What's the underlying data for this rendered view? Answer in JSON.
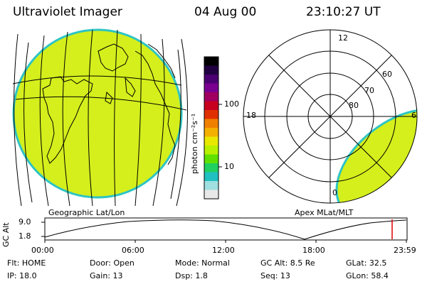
{
  "header": {
    "title": "Ultraviolet Imager",
    "date": "04 Aug 00",
    "time": "23:10:27 UT"
  },
  "colorbar": {
    "unit_label": "photon cm⁻²s⁻¹",
    "ticks": [
      "100",
      "10"
    ],
    "colors": [
      "#000000",
      "#200040",
      "#4a0070",
      "#7a0090",
      "#a00060",
      "#c80020",
      "#e03000",
      "#f08000",
      "#f4b000",
      "#e8e800",
      "#b8f000",
      "#60e000",
      "#20d060",
      "#20c0c0",
      "#a0e0e0",
      "#e8e8e8"
    ]
  },
  "left_panel": {
    "caption": "Geographic Lat/Lon",
    "fill_color": "#d4ef1c",
    "limb_color": "#2ec4c4"
  },
  "right_panel": {
    "caption": "Apex MLat/MLT",
    "mlt_labels": {
      "top": "12",
      "left": "18",
      "right": "6",
      "bottom": "0"
    },
    "lat_labels": [
      "60",
      "70",
      "80"
    ]
  },
  "timeline": {
    "ylabel": "GC Alt",
    "yticks": [
      "9.0",
      "1.8"
    ],
    "xticks": [
      "00:00",
      "06:00",
      "12:00",
      "18:00",
      "23:59"
    ],
    "marker_color": "#dd0000"
  },
  "info": {
    "flt": "Flt: HOME",
    "ip": "IP: 18.0",
    "door": "Door: Open",
    "gain": "Gain: 13",
    "mode": "Mode: Normal",
    "dsp": "Dsp:    1.8",
    "gc_alt": "GC Alt: 8.5 Re",
    "seq": "Seq: 13",
    "glat": "GLat:  32.5",
    "glon": "GLon:  58.4"
  }
}
